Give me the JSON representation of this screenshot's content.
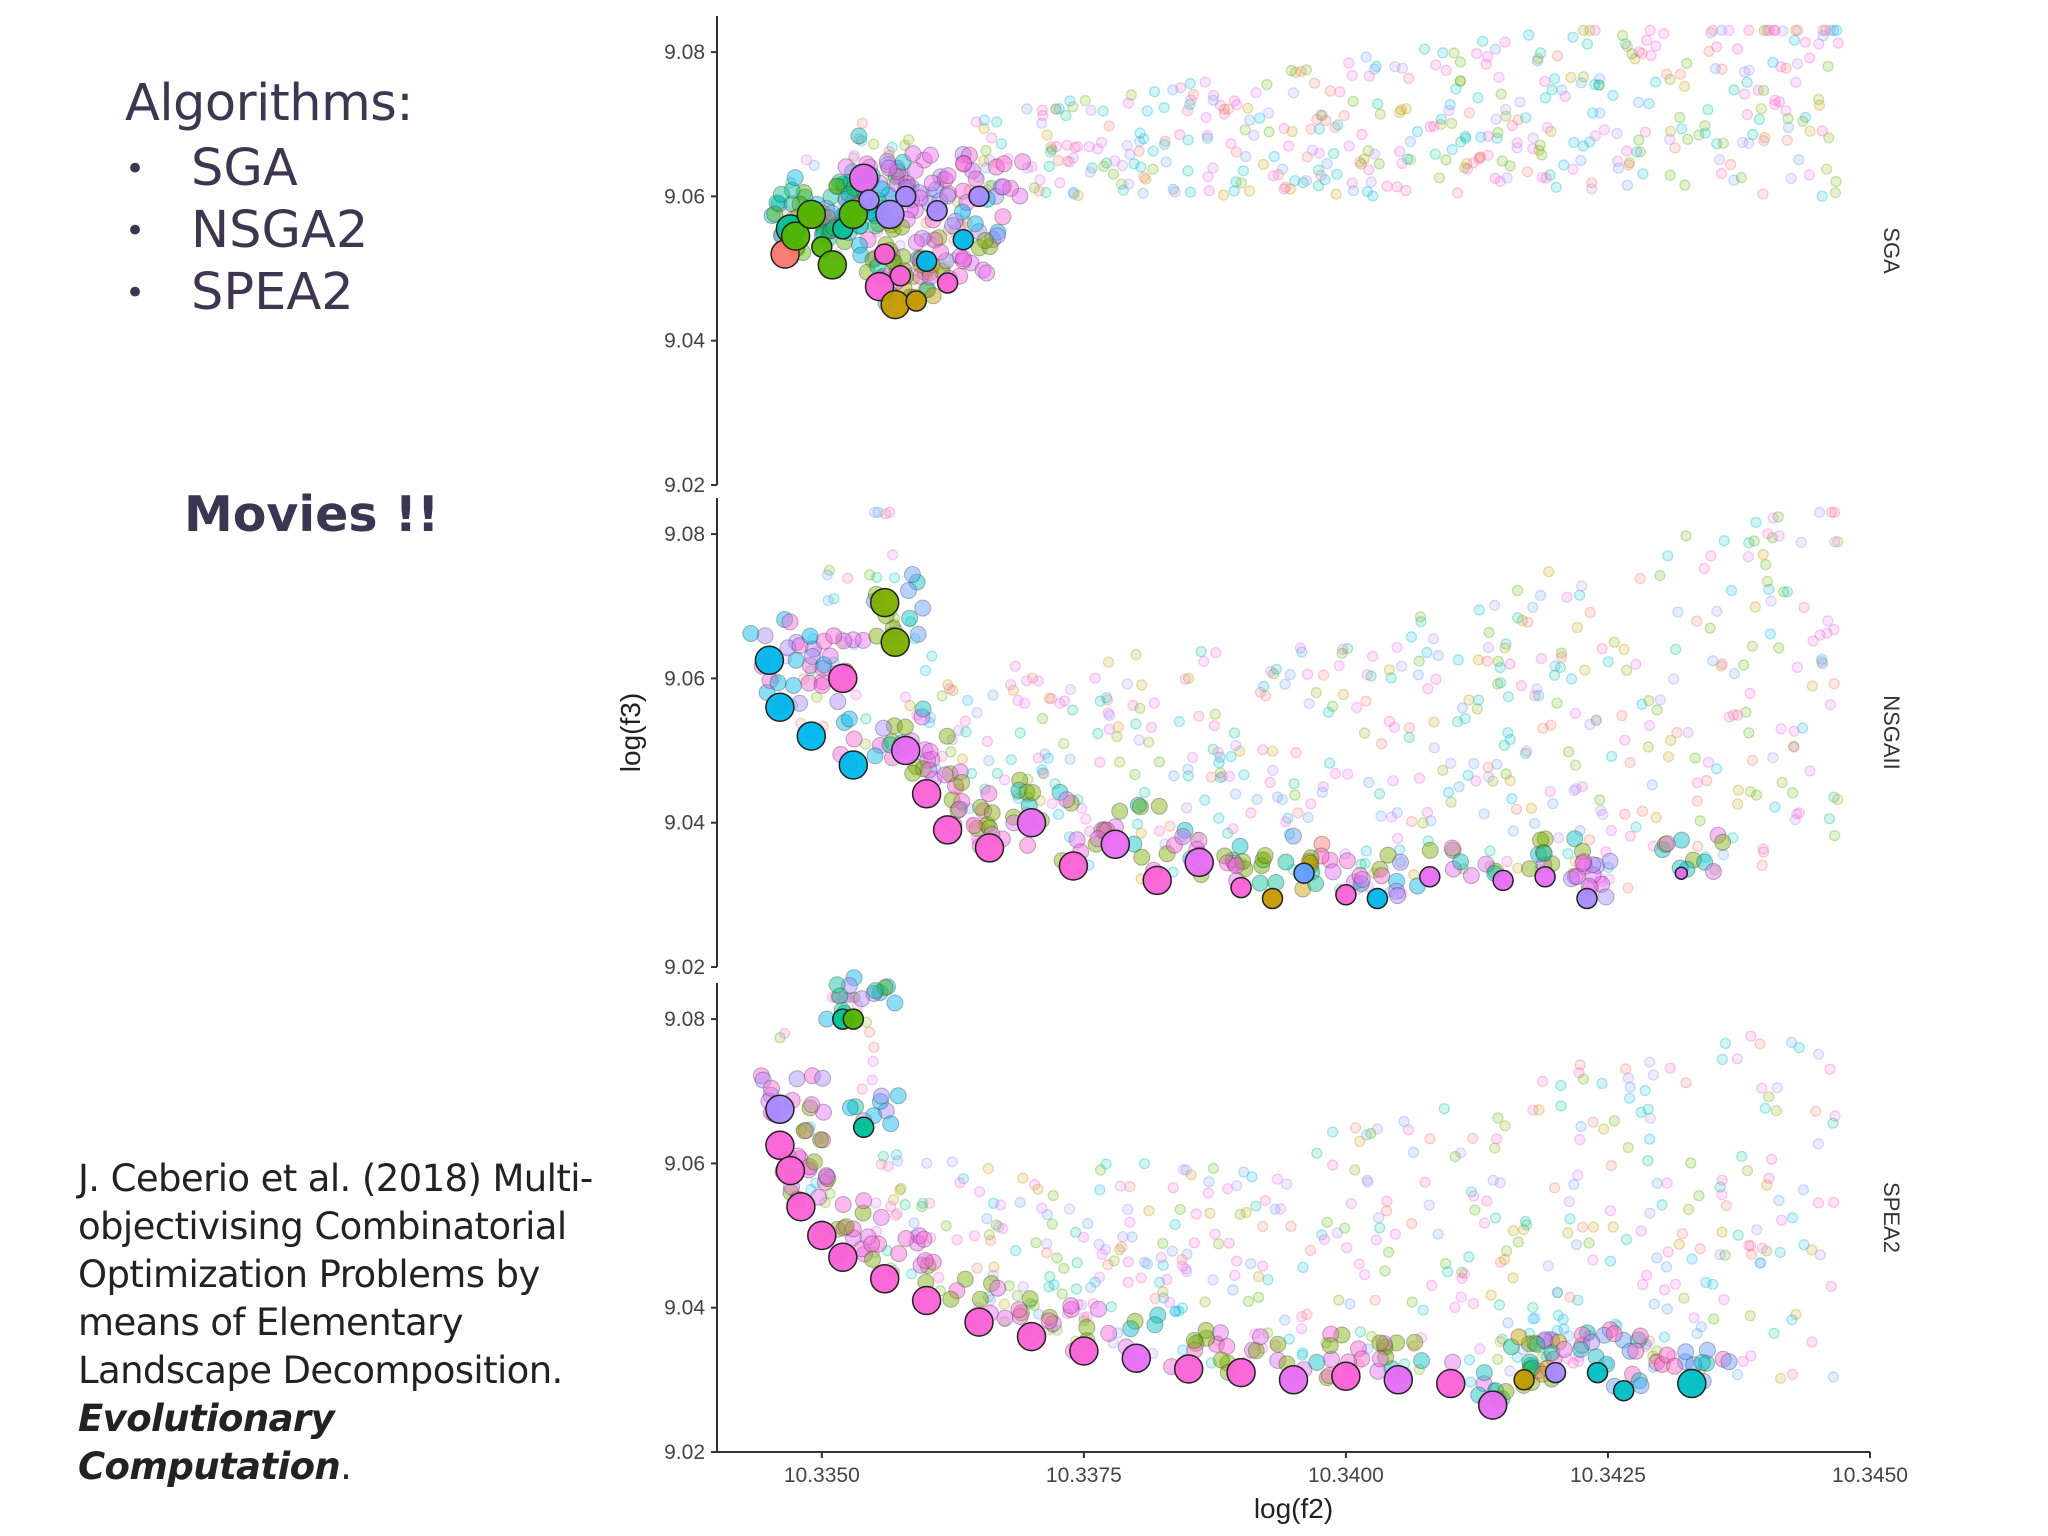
{
  "slide": {
    "algorithms_title": "Algorithms:",
    "algorithms": [
      "SGA",
      "NSGA2",
      "SPEA2"
    ],
    "bullet_glyph": "•",
    "movies_label": "Movies !!",
    "citation": {
      "text": "J. Ceberio et al. (2018) Multi-objectivising Combinatorial Optimization Problems by means of Elementary Landscape Decomposition.",
      "journal": "Evolutionary Computation",
      "trailing": "."
    }
  },
  "chart_data": {
    "type": "scatter",
    "xlabel": "log(f2)",
    "ylabel": "log(f3)",
    "xlim": [
      10.334,
      10.345
    ],
    "ylim": [
      9.02,
      9.085
    ],
    "x_ticks": [
      {
        "value": 10.335,
        "label": "10.3350"
      },
      {
        "value": 10.3375,
        "label": "10.3375"
      },
      {
        "value": 10.34,
        "label": "10.3400"
      },
      {
        "value": 10.3425,
        "label": "10.3425"
      },
      {
        "value": 10.345,
        "label": "10.3450"
      }
    ],
    "y_ticks": [
      {
        "value": 9.08,
        "label": "9.08"
      },
      {
        "value": 9.06,
        "label": "9.06"
      },
      {
        "value": 9.04,
        "label": "9.04"
      },
      {
        "value": 9.02,
        "label": "9.02"
      }
    ],
    "grid": false,
    "legend": "none",
    "palette": [
      "#f8766d",
      "#c49a00",
      "#53b400",
      "#00c094",
      "#00b6eb",
      "#a58aff",
      "#fb61d7",
      "#e76bf3",
      "#7cae00",
      "#00bfc4",
      "#619cff",
      "#ff61c3"
    ],
    "facets": [
      {
        "label": "SGA",
        "front": [
          {
            "x": 10.33465,
            "y": 9.052,
            "c": 0,
            "s": 2
          },
          {
            "x": 10.3347,
            "y": 9.0555,
            "c": 3,
            "s": 2
          },
          {
            "x": 10.33475,
            "y": 9.0545,
            "c": 2,
            "s": 2
          },
          {
            "x": 10.3349,
            "y": 9.0575,
            "c": 2,
            "s": 2
          },
          {
            "x": 10.335,
            "y": 9.053,
            "c": 2,
            "s": 1
          },
          {
            "x": 10.3351,
            "y": 9.0505,
            "c": 2,
            "s": 2
          },
          {
            "x": 10.3352,
            "y": 9.0555,
            "c": 3,
            "s": 1
          },
          {
            "x": 10.3353,
            "y": 9.0575,
            "c": 2,
            "s": 2
          },
          {
            "x": 10.3354,
            "y": 9.0625,
            "c": 7,
            "s": 2
          },
          {
            "x": 10.33545,
            "y": 9.0595,
            "c": 5,
            "s": 1
          },
          {
            "x": 10.33555,
            "y": 9.0475,
            "c": 6,
            "s": 2
          },
          {
            "x": 10.3356,
            "y": 9.052,
            "c": 6,
            "s": 1
          },
          {
            "x": 10.33565,
            "y": 9.0575,
            "c": 5,
            "s": 2
          },
          {
            "x": 10.3357,
            "y": 9.045,
            "c": 1,
            "s": 2
          },
          {
            "x": 10.33575,
            "y": 9.049,
            "c": 6,
            "s": 1
          },
          {
            "x": 10.3358,
            "y": 9.06,
            "c": 5,
            "s": 1
          },
          {
            "x": 10.3359,
            "y": 9.0455,
            "c": 1,
            "s": 1
          },
          {
            "x": 10.336,
            "y": 9.051,
            "c": 4,
            "s": 1
          },
          {
            "x": 10.3361,
            "y": 9.058,
            "c": 5,
            "s": 1
          },
          {
            "x": 10.3362,
            "y": 9.048,
            "c": 6,
            "s": 1
          },
          {
            "x": 10.33635,
            "y": 9.054,
            "c": 4,
            "s": 1
          },
          {
            "x": 10.3365,
            "y": 9.06,
            "c": 5,
            "s": 1
          }
        ]
      },
      {
        "label": "NSGAII",
        "front": [
          {
            "x": 10.3345,
            "y": 9.0625,
            "c": 4,
            "s": 2
          },
          {
            "x": 10.3346,
            "y": 9.056,
            "c": 4,
            "s": 2
          },
          {
            "x": 10.3349,
            "y": 9.052,
            "c": 4,
            "s": 2
          },
          {
            "x": 10.3353,
            "y": 9.048,
            "c": 4,
            "s": 2
          },
          {
            "x": 10.3356,
            "y": 9.0705,
            "c": 8,
            "s": 2
          },
          {
            "x": 10.3357,
            "y": 9.065,
            "c": 8,
            "s": 2
          },
          {
            "x": 10.3352,
            "y": 9.06,
            "c": 6,
            "s": 2
          },
          {
            "x": 10.3358,
            "y": 9.05,
            "c": 7,
            "s": 2
          },
          {
            "x": 10.336,
            "y": 9.044,
            "c": 6,
            "s": 2
          },
          {
            "x": 10.3362,
            "y": 9.039,
            "c": 6,
            "s": 2
          },
          {
            "x": 10.3366,
            "y": 9.0365,
            "c": 6,
            "s": 2
          },
          {
            "x": 10.337,
            "y": 9.04,
            "c": 7,
            "s": 2
          },
          {
            "x": 10.3374,
            "y": 9.034,
            "c": 6,
            "s": 2
          },
          {
            "x": 10.3378,
            "y": 9.037,
            "c": 7,
            "s": 2
          },
          {
            "x": 10.3382,
            "y": 9.032,
            "c": 6,
            "s": 2
          },
          {
            "x": 10.3386,
            "y": 9.0345,
            "c": 7,
            "s": 2
          },
          {
            "x": 10.339,
            "y": 9.031,
            "c": 6,
            "s": 1
          },
          {
            "x": 10.3393,
            "y": 9.0295,
            "c": 1,
            "s": 1
          },
          {
            "x": 10.3396,
            "y": 9.033,
            "c": 10,
            "s": 1
          },
          {
            "x": 10.34,
            "y": 9.03,
            "c": 6,
            "s": 1
          },
          {
            "x": 10.3403,
            "y": 9.0295,
            "c": 4,
            "s": 1
          },
          {
            "x": 10.3408,
            "y": 9.0325,
            "c": 7,
            "s": 1
          },
          {
            "x": 10.3415,
            "y": 9.032,
            "c": 7,
            "s": 1
          },
          {
            "x": 10.3419,
            "y": 9.0325,
            "c": 7,
            "s": 1
          },
          {
            "x": 10.3423,
            "y": 9.0295,
            "c": 5,
            "s": 1
          },
          {
            "x": 10.3432,
            "y": 9.033,
            "c": 7,
            "s": 0
          }
        ]
      },
      {
        "label": "SPEA2",
        "front": [
          {
            "x": 10.3352,
            "y": 9.08,
            "c": 3,
            "s": 1
          },
          {
            "x": 10.3353,
            "y": 9.08,
            "c": 2,
            "s": 1
          },
          {
            "x": 10.3346,
            "y": 9.0675,
            "c": 5,
            "s": 2
          },
          {
            "x": 10.3346,
            "y": 9.0625,
            "c": 6,
            "s": 2
          },
          {
            "x": 10.3347,
            "y": 9.059,
            "c": 6,
            "s": 2
          },
          {
            "x": 10.3348,
            "y": 9.054,
            "c": 6,
            "s": 2
          },
          {
            "x": 10.335,
            "y": 9.05,
            "c": 6,
            "s": 2
          },
          {
            "x": 10.3352,
            "y": 9.047,
            "c": 6,
            "s": 2
          },
          {
            "x": 10.3354,
            "y": 9.065,
            "c": 3,
            "s": 1
          },
          {
            "x": 10.3356,
            "y": 9.044,
            "c": 6,
            "s": 2
          },
          {
            "x": 10.336,
            "y": 9.041,
            "c": 6,
            "s": 2
          },
          {
            "x": 10.3365,
            "y": 9.038,
            "c": 6,
            "s": 2
          },
          {
            "x": 10.337,
            "y": 9.036,
            "c": 6,
            "s": 2
          },
          {
            "x": 10.3375,
            "y": 9.034,
            "c": 6,
            "s": 2
          },
          {
            "x": 10.338,
            "y": 9.033,
            "c": 7,
            "s": 2
          },
          {
            "x": 10.3385,
            "y": 9.0315,
            "c": 6,
            "s": 2
          },
          {
            "x": 10.339,
            "y": 9.031,
            "c": 6,
            "s": 2
          },
          {
            "x": 10.3395,
            "y": 9.03,
            "c": 7,
            "s": 2
          },
          {
            "x": 10.34,
            "y": 9.0305,
            "c": 6,
            "s": 2
          },
          {
            "x": 10.3405,
            "y": 9.03,
            "c": 7,
            "s": 2
          },
          {
            "x": 10.341,
            "y": 9.0295,
            "c": 6,
            "s": 2
          },
          {
            "x": 10.3414,
            "y": 9.0265,
            "c": 7,
            "s": 2
          },
          {
            "x": 10.3417,
            "y": 9.03,
            "c": 1,
            "s": 1
          },
          {
            "x": 10.342,
            "y": 9.031,
            "c": 5,
            "s": 1
          },
          {
            "x": 10.3424,
            "y": 9.031,
            "c": 9,
            "s": 1
          },
          {
            "x": 10.34265,
            "y": 9.0285,
            "c": 9,
            "s": 1
          },
          {
            "x": 10.3433,
            "y": 9.0295,
            "c": 9,
            "s": 2
          }
        ]
      }
    ]
  }
}
